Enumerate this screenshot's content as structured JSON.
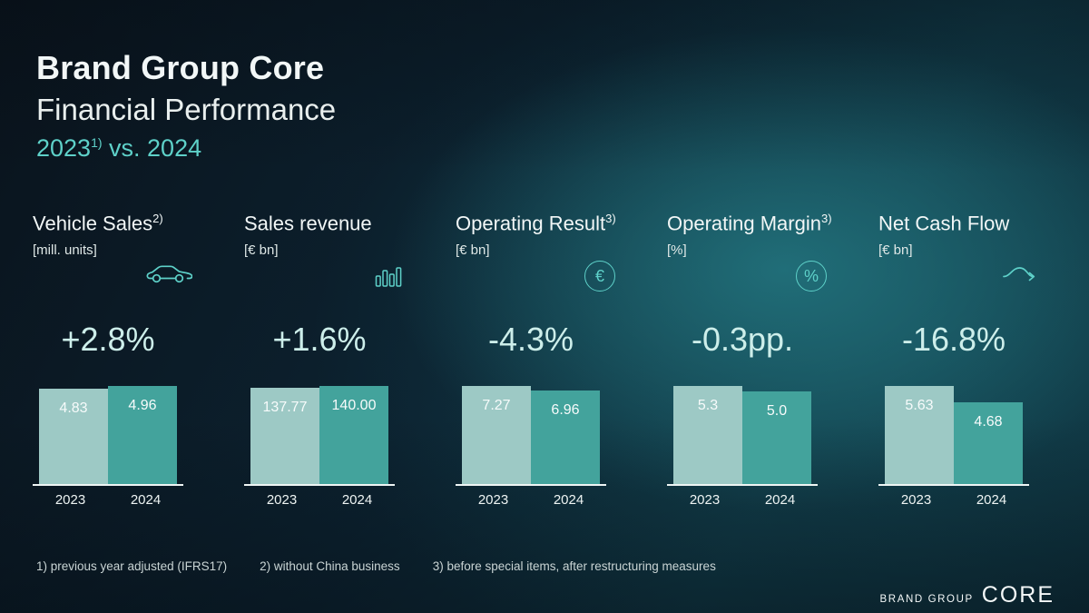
{
  "header": {
    "title": "Brand Group Core",
    "subtitle": "Financial Performance",
    "comparison": {
      "lead": "2023",
      "sup": "1)",
      "rest": " vs. 2024"
    }
  },
  "kpis": [
    {
      "label": "Vehicle Sales",
      "sup": "2)",
      "unit": "[mill. units]",
      "icon": "car-icon",
      "delta": "+2.8%",
      "values": [
        "4.83",
        "4.96"
      ],
      "years": [
        "2023",
        "2024"
      ]
    },
    {
      "label": "Sales revenue",
      "sup": "",
      "unit": "[€ bn]",
      "icon": "bar-chart-icon",
      "delta": "+1.6%",
      "values": [
        "137.77",
        "140.00"
      ],
      "years": [
        "2023",
        "2024"
      ]
    },
    {
      "label": "Operating Result",
      "sup": "3)",
      "unit": "[€ bn]",
      "icon": "euro-icon",
      "delta": "-4.3%",
      "values": [
        "7.27",
        "6.96"
      ],
      "years": [
        "2023",
        "2024"
      ]
    },
    {
      "label": "Operating Margin",
      "sup": "3)",
      "unit": "[%]",
      "icon": "percent-icon",
      "delta": "-0.3pp.",
      "values": [
        "5.3",
        "5.0"
      ],
      "years": [
        "2023",
        "2024"
      ]
    },
    {
      "label": "Net Cash Flow",
      "sup": "",
      "unit": "[€ bn]",
      "icon": "cashflow-icon",
      "delta": "-16.8%",
      "values": [
        "5.63",
        "4.68"
      ],
      "years": [
        "2023",
        "2024"
      ]
    }
  ],
  "chart_data": [
    {
      "type": "bar",
      "title": "Vehicle Sales",
      "ylabel": "mill. units",
      "categories": [
        "2023",
        "2024"
      ],
      "values": [
        4.83,
        4.96
      ],
      "delta": "+2.8%"
    },
    {
      "type": "bar",
      "title": "Sales revenue",
      "ylabel": "€ bn",
      "categories": [
        "2023",
        "2024"
      ],
      "values": [
        137.77,
        140.0
      ],
      "delta": "+1.6%"
    },
    {
      "type": "bar",
      "title": "Operating Result",
      "ylabel": "€ bn",
      "categories": [
        "2023",
        "2024"
      ],
      "values": [
        7.27,
        6.96
      ],
      "delta": "-4.3%"
    },
    {
      "type": "bar",
      "title": "Operating Margin",
      "ylabel": "%",
      "categories": [
        "2023",
        "2024"
      ],
      "values": [
        5.3,
        5.0
      ],
      "delta": "-0.3pp."
    },
    {
      "type": "bar",
      "title": "Net Cash Flow",
      "ylabel": "€ bn",
      "categories": [
        "2023",
        "2024"
      ],
      "values": [
        5.63,
        4.68
      ],
      "delta": "-16.8%"
    }
  ],
  "footnotes": [
    "1) previous year adjusted (IFRS17)",
    "2) without China business",
    "3) before special items, after restructuring measures"
  ],
  "logo": {
    "brand": "BRAND GROUP",
    "core": "CORE"
  },
  "colors": {
    "accent": "#5ed1c9",
    "delta-text": "#cdeeea",
    "bar-2023": "#9dc9c5",
    "bar-2024": "#43a39c",
    "text": "#f2f7f7",
    "muted": "#c9d4d4"
  }
}
